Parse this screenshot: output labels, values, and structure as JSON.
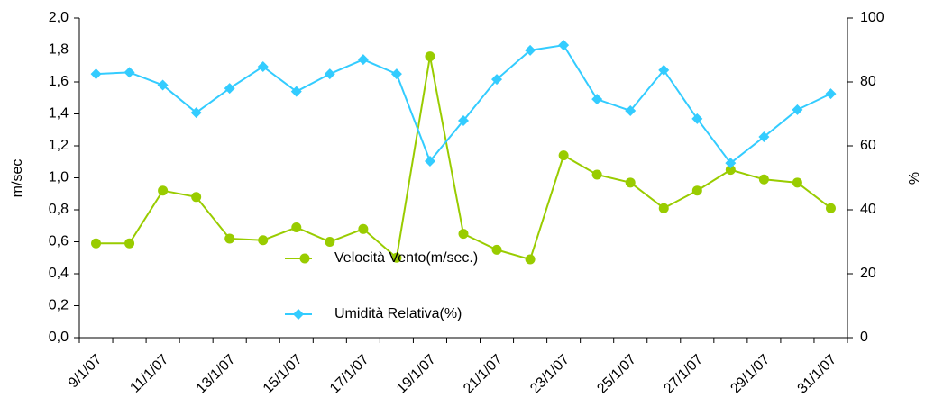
{
  "chart_data": {
    "type": "line",
    "categories": [
      "9/1/07",
      null,
      "11/1/07",
      null,
      "13/1/07",
      null,
      "15/1/07",
      null,
      "17/1/07",
      null,
      "19/1/07",
      null,
      "21/1/07",
      null,
      "23/1/07",
      null,
      "25/1/07",
      null,
      "27/1/07",
      null,
      "29/1/07",
      null,
      "31/1/07"
    ],
    "series": [
      {
        "name": "Velocità Vento(m/sec.)",
        "color": "#99cc00",
        "marker": "circle",
        "values": [
          0.59,
          0.59,
          0.92,
          0.88,
          0.62,
          0.61,
          0.69,
          0.6,
          0.68,
          0.5,
          1.76,
          0.65,
          0.55,
          0.49,
          1.14,
          1.02,
          0.97,
          0.81,
          0.92,
          1.05,
          0.99,
          0.97,
          0.81
        ]
      },
      {
        "name": "Umidità Relativa(%)",
        "color": "#33ccff",
        "marker": "diamond",
        "axis": "y2",
        "values": [
          82.5,
          83,
          79,
          70.4,
          78,
          84.8,
          77,
          82.5,
          87,
          82.5,
          55.2,
          67.9,
          80.8,
          89.9,
          91.5,
          74.6,
          71,
          83.7,
          68.5,
          54.6,
          62.8,
          71.3,
          76.3
        ]
      }
    ],
    "y_label": "m/sec",
    "y2_label": "%",
    "ylim": [
      0,
      2
    ],
    "yticks": [
      {
        "value": 0,
        "label": "0,0"
      },
      {
        "value": 0.2,
        "label": "0,2"
      },
      {
        "value": 0.4,
        "label": "0,4"
      },
      {
        "value": 0.6,
        "label": "0,6"
      },
      {
        "value": 0.8,
        "label": "0,8"
      },
      {
        "value": 1,
        "label": "1,0"
      },
      {
        "value": 1.2,
        "label": "1,2"
      },
      {
        "value": 1.4,
        "label": "1,4"
      },
      {
        "value": 1.6,
        "label": "1,6"
      },
      {
        "value": 1.8,
        "label": "1,8"
      },
      {
        "value": 2,
        "label": "2,0"
      }
    ],
    "y2lim": [
      0,
      100
    ],
    "y2ticks": [
      0,
      20,
      40,
      60,
      80,
      100
    ],
    "grid": false
  }
}
